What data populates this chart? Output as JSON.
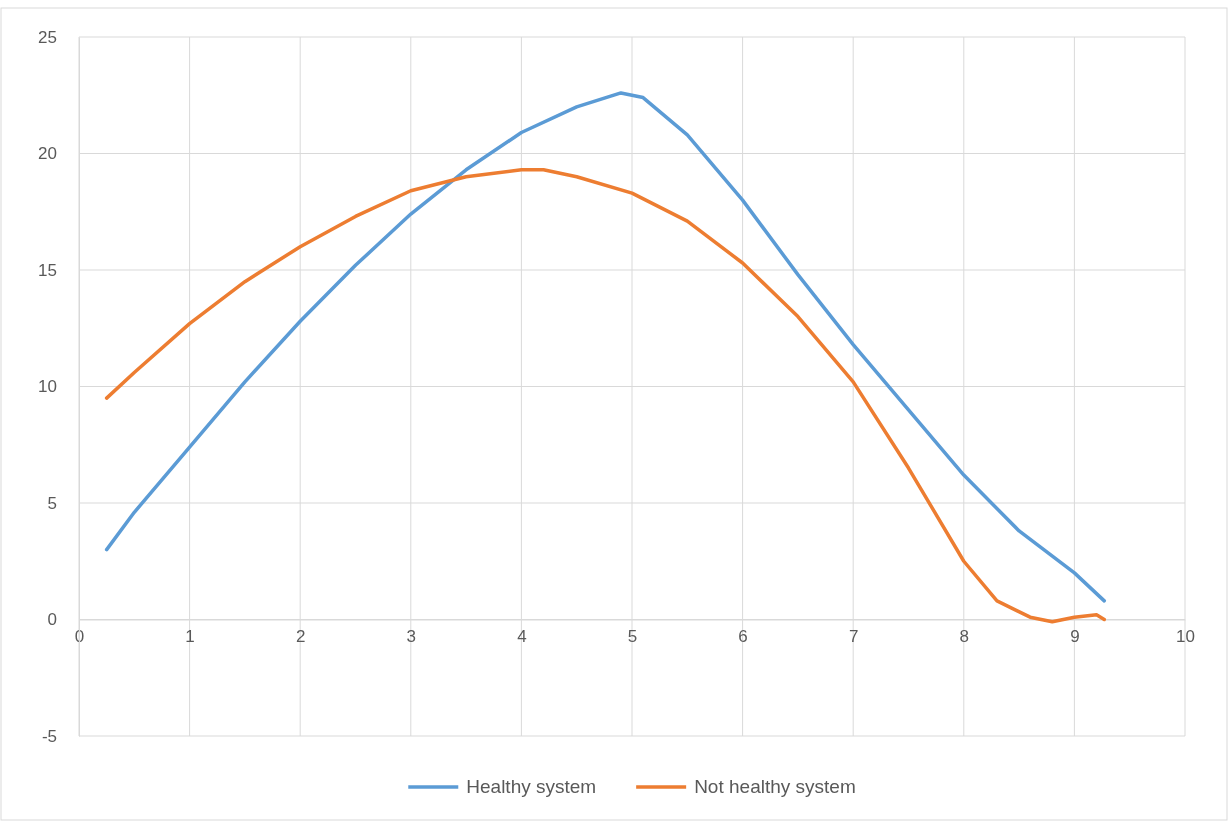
{
  "chart_data": {
    "type": "line",
    "xlim": [
      0,
      10
    ],
    "xticks": [
      0,
      1,
      2,
      3,
      4,
      5,
      6,
      7,
      8,
      9,
      10
    ],
    "ylim": [
      -5,
      25
    ],
    "yticks": [
      -5,
      0,
      5,
      10,
      15,
      20,
      25
    ],
    "grid": true,
    "legend": "bottom",
    "marker": "none",
    "line_style": "solid",
    "series": [
      {
        "name": "Healthy system",
        "color": "#5b9bd5",
        "x": [
          0.25,
          0.5,
          1,
          1.5,
          2,
          2.5,
          3,
          3.5,
          4,
          4.5,
          4.9,
          5.1,
          5.5,
          6,
          6.5,
          7,
          7.5,
          8,
          8.5,
          9,
          9.27
        ],
        "values": [
          3,
          4.6,
          7.4,
          10.2,
          12.8,
          15.2,
          17.4,
          19.3,
          20.9,
          22,
          22.6,
          22.4,
          20.8,
          18,
          14.8,
          11.8,
          9,
          6.2,
          3.8,
          2,
          0.8
        ]
      },
      {
        "name": "Not healthy system",
        "color": "#ed7d31",
        "x": [
          0.25,
          0.5,
          1,
          1.5,
          2,
          2.5,
          3,
          3.5,
          4,
          4.2,
          4.5,
          5,
          5.5,
          6,
          6.5,
          7,
          7.5,
          8,
          8.3,
          8.6,
          8.8,
          9,
          9.2,
          9.27
        ],
        "values": [
          9.5,
          10.6,
          12.7,
          14.5,
          16,
          17.3,
          18.4,
          19,
          19.3,
          19.3,
          19,
          18.3,
          17.1,
          15.3,
          13,
          10.2,
          6.5,
          2.5,
          0.8,
          0.1,
          -0.1,
          0.1,
          0.2,
          0
        ]
      }
    ]
  }
}
